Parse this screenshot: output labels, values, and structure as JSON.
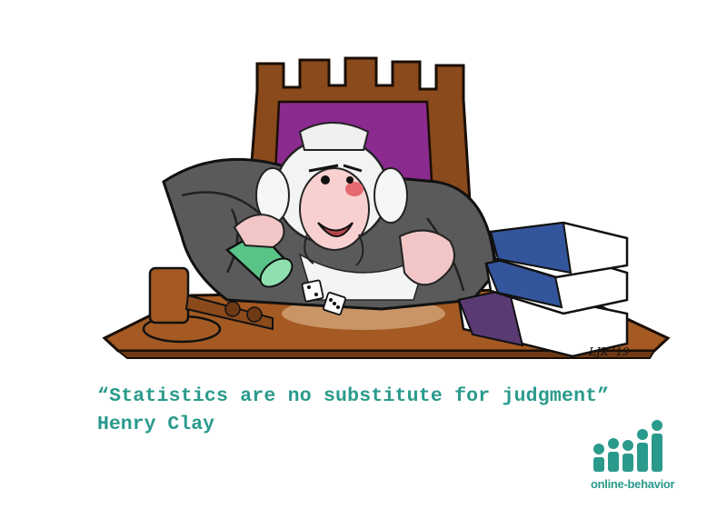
{
  "caption": {
    "quote": "“Statistics are no substitute for judgment”",
    "author": "Henry Clay"
  },
  "logo": {
    "text": "online-behavior",
    "color": "#2a9a8c"
  },
  "signature": "LJK ‘19",
  "colors": {
    "chair": "#8a4a1c",
    "chair_panel": "#8b2a8f",
    "desk": "#a45a22",
    "robe": "#5a5a5a",
    "cup": "#59c488",
    "books_blue": "#33559b",
    "books_purple": "#5a3a72"
  }
}
